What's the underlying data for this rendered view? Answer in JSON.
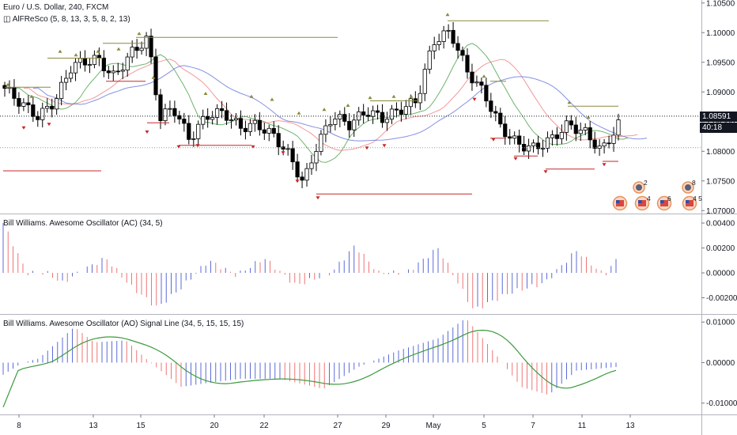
{
  "header": {
    "title": "Euro / U.S. Dollar, 240, FXCM",
    "indicator": "AlFReSco (5, 8, 13, 3, 5, 8, 2, 13)"
  },
  "price_tag": {
    "value": "1.08591",
    "timer": "40:18"
  },
  "colors": {
    "up": "#ffffff",
    "down": "#000000",
    "blue": "#5b6bd8",
    "red": "#ef7575",
    "green": "#3d9a3d",
    "olive": "#8a8a3a",
    "darkred": "#c62828",
    "grid": "#e0e3eb"
  },
  "event_badges": [
    "2",
    "4",
    "6",
    "8",
    "4 5"
  ],
  "chart_data": [
    {
      "type": "candlestick",
      "title": "Euro / U.S. Dollar, 240, FXCM",
      "x_ticks": [
        "8",
        "13",
        "15",
        "20",
        "22",
        "27",
        "29",
        "May",
        "5",
        "7",
        "11",
        "13"
      ],
      "y_ticks": [
        "1.10500",
        "1.10000",
        "1.09500",
        "1.09000",
        "1.08500",
        "1.08000",
        "1.07500",
        "1.07000"
      ],
      "ylim": [
        1.0695,
        1.1055
      ],
      "last_price": 1.08591,
      "reference_level": 1.0806
    },
    {
      "type": "bar",
      "title": "Bill Williams. Awesome Oscillator (AC) (34, 5)",
      "y_ticks": [
        "0.00400",
        "0.00200",
        "0.00000",
        "-0.00200"
      ],
      "ylim": [
        -0.0033,
        0.0047
      ]
    },
    {
      "type": "bar",
      "title": "Bill Williams. Awesome Oscillator (AO) Signal Line (34, 5, 15, 15, 15)",
      "y_ticks": [
        "0.01000",
        "0.00000",
        "-0.01000"
      ],
      "ylim": [
        -0.0128,
        0.0118
      ]
    }
  ]
}
